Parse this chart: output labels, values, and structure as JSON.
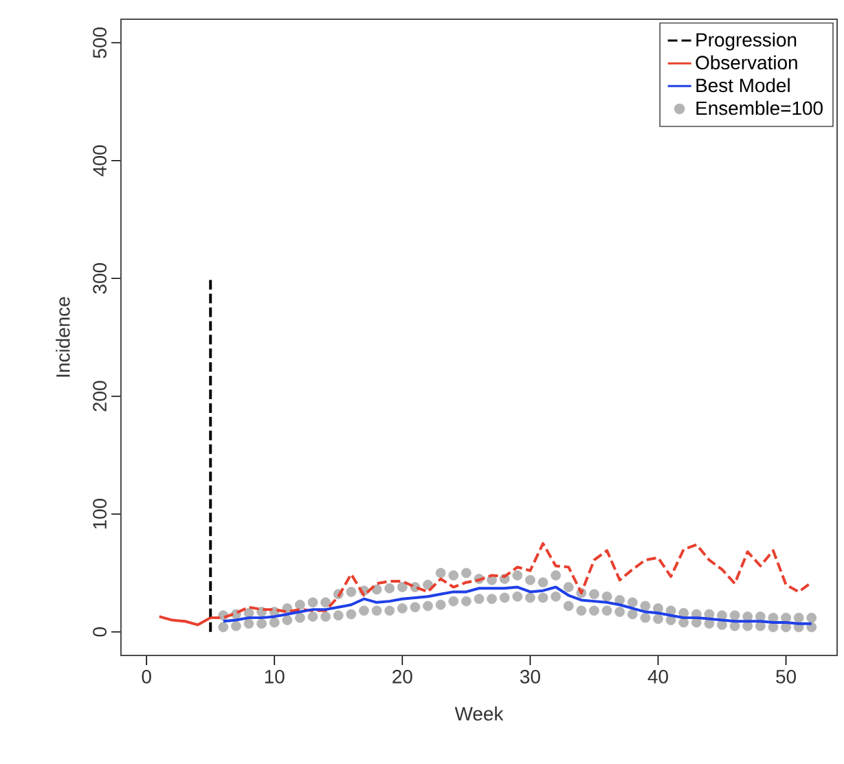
{
  "chart_data": {
    "type": "line",
    "xlabel": "Week",
    "ylabel": "Incidence",
    "xlim": [
      -2,
      54
    ],
    "ylim": [
      -20,
      520
    ],
    "xticks": [
      0,
      10,
      20,
      30,
      40,
      50
    ],
    "yticks": [
      0,
      100,
      200,
      300,
      400,
      500
    ],
    "legend": "top right",
    "series": [
      {
        "name": "Progression",
        "line_style": "dashed",
        "color": "#000000",
        "x": [
          5,
          5
        ],
        "values": [
          0,
          300
        ]
      },
      {
        "name": "Observation",
        "line_style": "solid",
        "color": "#e8402f",
        "x": [
          1,
          2,
          3,
          4,
          5
        ],
        "values": [
          13,
          10,
          9,
          6,
          12
        ]
      },
      {
        "line_style": "dashed",
        "color": "#e8402f",
        "x": [
          5,
          6,
          7,
          8,
          9,
          10,
          11,
          12,
          13,
          14,
          15,
          16,
          17,
          18,
          19,
          20,
          21,
          22,
          23,
          24,
          25,
          26,
          27,
          28,
          29,
          30,
          31,
          32,
          33,
          34,
          35,
          36,
          37,
          38,
          39,
          40,
          41,
          42,
          43,
          44,
          45,
          46,
          47,
          48,
          49,
          50,
          51,
          52
        ],
        "values": [
          12,
          12,
          16,
          21,
          19,
          19,
          17,
          19,
          18,
          18,
          30,
          49,
          31,
          41,
          43,
          43,
          38,
          34,
          45,
          38,
          42,
          44,
          48,
          47,
          55,
          52,
          75,
          56,
          55,
          33,
          61,
          69,
          44,
          53,
          61,
          63,
          47,
          70,
          74,
          61,
          53,
          41,
          68,
          56,
          69,
          40,
          34,
          42
        ]
      },
      {
        "name": "Best Model",
        "line_style": "solid",
        "color": "#1f3fe6",
        "x": [
          6,
          7,
          8,
          9,
          10,
          11,
          12,
          13,
          14,
          15,
          16,
          17,
          18,
          19,
          20,
          21,
          22,
          23,
          24,
          25,
          26,
          27,
          28,
          29,
          30,
          31,
          32,
          33,
          34,
          35,
          36,
          37,
          38,
          39,
          40,
          41,
          42,
          43,
          44,
          45,
          46,
          47,
          48,
          49,
          50,
          51,
          52
        ],
        "values": [
          9,
          10,
          12,
          12,
          13,
          15,
          17,
          19,
          19,
          21,
          23,
          28,
          25,
          26,
          28,
          29,
          30,
          32,
          34,
          34,
          37,
          37,
          37,
          38,
          34,
          35,
          38,
          31,
          27,
          26,
          25,
          23,
          20,
          17,
          16,
          14,
          12,
          12,
          11,
          10,
          9,
          9,
          9,
          8,
          8,
          7,
          7
        ]
      },
      {
        "name": "Ensemble=100",
        "type": "scatter",
        "color": "#b4b4b4",
        "x": [
          6,
          7,
          8,
          9,
          10,
          11,
          12,
          13,
          14,
          15,
          16,
          17,
          18,
          19,
          20,
          21,
          22,
          23,
          24,
          25,
          26,
          27,
          28,
          29,
          30,
          31,
          32,
          33,
          34,
          35,
          36,
          37,
          38,
          39,
          40,
          41,
          42,
          43,
          44,
          45,
          46,
          47,
          48,
          49,
          50,
          51,
          52,
          6,
          7,
          8,
          9,
          10,
          11,
          12,
          13,
          14,
          15,
          16,
          17,
          18,
          19,
          20,
          21,
          22,
          23,
          24,
          25,
          26,
          27,
          28,
          29,
          30,
          31,
          32,
          33,
          34,
          35,
          36,
          37,
          38,
          39,
          40,
          41,
          42,
          43,
          44,
          45,
          46,
          47,
          48,
          49,
          50,
          51,
          52
        ],
        "values": [
          14,
          15,
          16,
          17,
          17,
          20,
          23,
          25,
          25,
          32,
          34,
          35,
          36,
          37,
          38,
          38,
          40,
          50,
          48,
          50,
          45,
          44,
          45,
          48,
          44,
          42,
          48,
          38,
          33,
          32,
          30,
          27,
          25,
          22,
          20,
          18,
          16,
          15,
          15,
          14,
          14,
          13,
          13,
          12,
          12,
          12,
          12,
          4,
          5,
          7,
          7,
          8,
          10,
          12,
          13,
          13,
          14,
          15,
          18,
          18,
          18,
          20,
          21,
          22,
          23,
          26,
          26,
          28,
          28,
          29,
          30,
          29,
          29,
          30,
          22,
          18,
          18,
          18,
          17,
          15,
          12,
          11,
          10,
          8,
          8,
          7,
          6,
          5,
          5,
          5,
          4,
          4,
          4,
          4
        ]
      }
    ]
  }
}
